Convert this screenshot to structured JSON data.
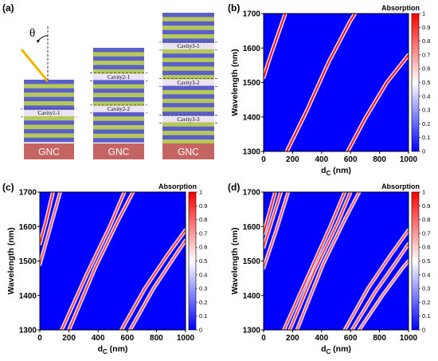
{
  "colors": {
    "layer_blue": "#5b60c8",
    "layer_yellow": "#b6c85a",
    "cavity_fill": "#ebe2f3",
    "substrate": "#c56563",
    "incident_beam": "#f2b500",
    "map_low": "#0000ff",
    "map_mid": "#ffffff",
    "map_high": "#ff0000"
  },
  "panel_a": {
    "label": "(a)",
    "angle_symbol": "θ",
    "substrate_label": "GNC",
    "stacks": [
      {
        "cavities": [
          "Cavity1-1"
        ]
      },
      {
        "cavities": [
          "Cavity2-1",
          "Cavity2-2"
        ]
      },
      {
        "cavities": [
          "Cavity3-1",
          "Cavity3-2",
          "Cavity3-3"
        ]
      }
    ]
  },
  "chart_data": [
    {
      "panel": "(b)",
      "type": "heatmap",
      "title": "Absorption",
      "xlabel": "d",
      "xlabel_sub": "C",
      "xlabel_unit": " (nm)",
      "ylabel": "Wavelength (nm)",
      "xlim": [
        0,
        1000
      ],
      "ylim": [
        1300,
        1700
      ],
      "xticks": [
        "0",
        "200",
        "400",
        "600",
        "800",
        "1000"
      ],
      "yticks": [
        "1300",
        "1400",
        "1500",
        "1600",
        "1700"
      ],
      "colorbar_ticks": [
        "0",
        "0.1",
        "0.2",
        "0.3",
        "0.4",
        "0.5",
        "0.6",
        "0.7",
        "0.8",
        "0.9",
        "1"
      ],
      "colorbar_range": [
        0,
        1
      ],
      "resonance_bands": [
        {
          "points": [
            [
              0,
              1515
            ],
            [
              50,
              1580
            ],
            [
              100,
              1640
            ],
            [
              150,
              1700
            ]
          ],
          "peak": 1.0
        },
        {
          "points": [
            [
              160,
              1300
            ],
            [
              300,
              1420
            ],
            [
              450,
              1560
            ],
            [
              600,
              1680
            ],
            [
              630,
              1700
            ]
          ],
          "peak": 1.0
        },
        {
          "points": [
            [
              580,
              1300
            ],
            [
              700,
              1395
            ],
            [
              850,
              1500
            ],
            [
              1000,
              1580
            ]
          ],
          "peak": 1.0
        }
      ]
    },
    {
      "panel": "(c)",
      "type": "heatmap",
      "title": "Absorption",
      "xlabel": "d",
      "xlabel_sub": "C",
      "xlabel_unit": " (nm)",
      "ylabel": "Wavelength (nm)",
      "xlim": [
        0,
        1000
      ],
      "ylim": [
        1300,
        1700
      ],
      "xticks": [
        "0",
        "200",
        "400",
        "600",
        "800",
        "1000"
      ],
      "yticks": [
        "1300",
        "1400",
        "1500",
        "1600",
        "1700"
      ],
      "colorbar_ticks": [
        "0",
        "0.1",
        "0.2",
        "0.3",
        "0.4",
        "0.5",
        "0.6",
        "0.7",
        "0.8",
        "0.9",
        "1"
      ],
      "colorbar_range": [
        0,
        1
      ],
      "resonance_bands": [
        {
          "points": [
            [
              0,
              1550
            ],
            [
              40,
              1610
            ],
            [
              90,
              1700
            ]
          ],
          "peak": 0.95
        },
        {
          "points": [
            [
              0,
              1490
            ],
            [
              60,
              1580
            ],
            [
              140,
              1700
            ]
          ],
          "peak": 0.85
        },
        {
          "points": [
            [
              150,
              1300
            ],
            [
              320,
              1460
            ],
            [
              480,
              1600
            ],
            [
              580,
              1700
            ]
          ],
          "peak": 0.9
        },
        {
          "points": [
            [
              200,
              1300
            ],
            [
              380,
              1480
            ],
            [
              540,
              1620
            ],
            [
              640,
              1700
            ]
          ],
          "peak": 0.9
        },
        {
          "points": [
            [
              560,
              1300
            ],
            [
              720,
              1420
            ],
            [
              880,
              1520
            ],
            [
              1000,
              1590
            ]
          ],
          "peak": 0.9
        },
        {
          "points": [
            [
              620,
              1300
            ],
            [
              780,
              1420
            ],
            [
              920,
              1510
            ],
            [
              1000,
              1560
            ]
          ],
          "peak": 0.85
        }
      ]
    },
    {
      "panel": "(d)",
      "type": "heatmap",
      "title": "Absorption",
      "xlabel": "d",
      "xlabel_sub": "C",
      "xlabel_unit": " (nm)",
      "ylabel": "Wavelength (nm)",
      "xlim": [
        0,
        1000
      ],
      "ylim": [
        1300,
        1700
      ],
      "xticks": [
        "0",
        "200",
        "400",
        "600",
        "800",
        "1000"
      ],
      "yticks": [
        "1300",
        "1400",
        "1500",
        "1600",
        "1700"
      ],
      "colorbar_ticks": [
        "0",
        "0.1",
        "0.2",
        "0.3",
        "0.4",
        "0.5",
        "0.6",
        "0.7",
        "0.8",
        "0.9",
        "1"
      ],
      "colorbar_range": [
        0,
        1
      ],
      "resonance_bands": [
        {
          "points": [
            [
              0,
              1580
            ],
            [
              40,
              1640
            ],
            [
              80,
              1700
            ]
          ],
          "peak": 0.95
        },
        {
          "points": [
            [
              0,
              1540
            ],
            [
              60,
              1620
            ],
            [
              120,
              1700
            ]
          ],
          "peak": 0.9
        },
        {
          "points": [
            [
              0,
              1480
            ],
            [
              80,
              1580
            ],
            [
              170,
              1700
            ]
          ],
          "peak": 0.85
        },
        {
          "points": [
            [
              140,
              1300
            ],
            [
              300,
              1450
            ],
            [
              460,
              1600
            ],
            [
              560,
              1700
            ]
          ],
          "peak": 0.9
        },
        {
          "points": [
            [
              180,
              1300
            ],
            [
              350,
              1470
            ],
            [
              510,
              1610
            ],
            [
              600,
              1700
            ]
          ],
          "peak": 0.9
        },
        {
          "points": [
            [
              230,
              1300
            ],
            [
              410,
              1490
            ],
            [
              560,
              1620
            ],
            [
              660,
              1700
            ]
          ],
          "peak": 0.85
        },
        {
          "points": [
            [
              560,
              1300
            ],
            [
              720,
              1420
            ],
            [
              880,
              1520
            ],
            [
              1000,
              1590
            ]
          ],
          "peak": 0.85
        },
        {
          "points": [
            [
              610,
              1300
            ],
            [
              770,
              1410
            ],
            [
              920,
              1500
            ],
            [
              1000,
              1550
            ]
          ],
          "peak": 0.85
        },
        {
          "points": [
            [
              660,
              1300
            ],
            [
              820,
              1400
            ],
            [
              960,
              1480
            ],
            [
              1000,
              1500
            ]
          ],
          "peak": 0.8
        }
      ]
    }
  ]
}
